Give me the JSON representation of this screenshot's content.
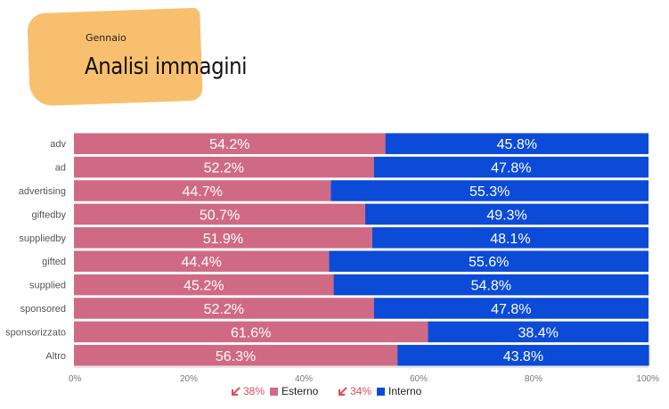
{
  "header": {
    "month": "Gennaio",
    "title": "Analisi immagini"
  },
  "colors": {
    "accent": "#f8c06e",
    "esterno": "#d06a84",
    "interno": "#0c4bd8",
    "trend": "#e04b5c"
  },
  "legend": {
    "esterno_trend": "38%",
    "esterno_label": "Esterno",
    "interno_trend": "34%",
    "interno_label": "Interno",
    "trend_icon": "arrow-down-left-icon"
  },
  "chart_data": {
    "type": "bar",
    "orientation": "horizontal",
    "stacked": true,
    "normalized": true,
    "categories": [
      "adv",
      "ad",
      "advertising",
      "giftedby",
      "suppliedby",
      "gifted",
      "supplied",
      "sponsored",
      "sponsorizzato",
      "Altro"
    ],
    "series": [
      {
        "name": "Esterno",
        "values": [
          54.2,
          52.2,
          44.7,
          50.7,
          51.9,
          44.4,
          45.2,
          52.2,
          61.6,
          56.3
        ],
        "labels": [
          "54.2%",
          "52.2%",
          "44.7%",
          "50.7%",
          "51.9%",
          "44.4%",
          "45.2%",
          "52.2%",
          "61.6%",
          "56.3%"
        ]
      },
      {
        "name": "Interno",
        "values": [
          45.8,
          47.8,
          55.3,
          49.3,
          48.1,
          55.6,
          54.8,
          47.8,
          38.4,
          43.8
        ],
        "labels": [
          "45.8%",
          "47.8%",
          "55.3%",
          "49.3%",
          "48.1%",
          "55.6%",
          "54.8%",
          "47.8%",
          "38.4%",
          "43.8%"
        ]
      }
    ],
    "xlim": [
      0,
      100
    ],
    "xticks": [
      0,
      20,
      40,
      60,
      80,
      100
    ],
    "xtick_labels": [
      "0%",
      "20%",
      "40%",
      "60%",
      "80%",
      "100%"
    ],
    "legend_position": "bottom",
    "grid": false
  }
}
